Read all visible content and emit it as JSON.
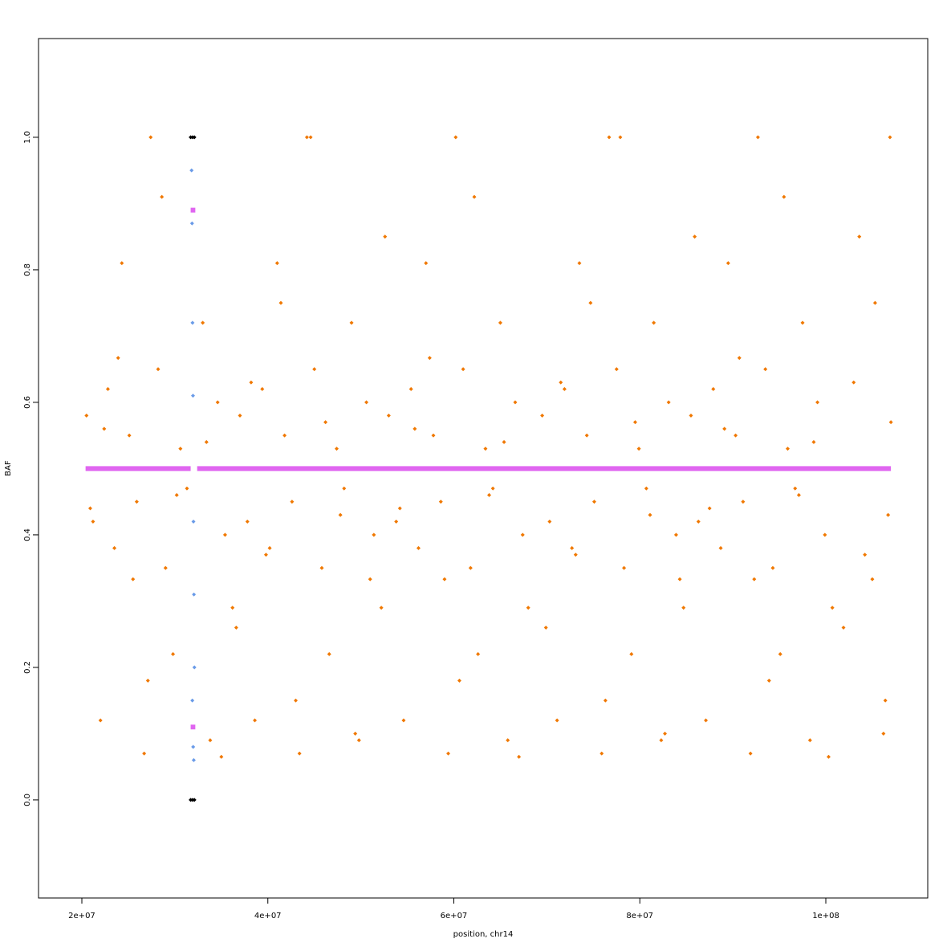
{
  "chart_data": {
    "type": "scatter",
    "xlabel": "position, chr14",
    "ylabel": "BAF",
    "xlim": [
      15340000,
      110960000
    ],
    "ylim": [
      -0.148,
      1.149
    ],
    "xticks": [
      {
        "value": 20000000,
        "label": "2e+07"
      },
      {
        "value": 40000000,
        "label": "4e+07"
      },
      {
        "value": 60000000,
        "label": "6e+07"
      },
      {
        "value": 80000000,
        "label": "8e+07"
      },
      {
        "value": 100000000,
        "label": "1e+08"
      }
    ],
    "yticks": [
      {
        "value": 0,
        "label": "0.0"
      },
      0.2,
      0.4,
      0.6,
      0.8,
      {
        "value": 1,
        "label": "1.0"
      }
    ],
    "series": [
      {
        "color": "#f07800",
        "mode": "points",
        "x": [
          20500000,
          21200000,
          22000000,
          22800000,
          23500000,
          24300000,
          25100000,
          25900000,
          26700000,
          27400000,
          28200000,
          29000000,
          29800000,
          30600000,
          31300000,
          33000000,
          33800000,
          34600000,
          35400000,
          36200000,
          37000000,
          37800000,
          38600000,
          39400000,
          40200000,
          41000000,
          41800000,
          42600000,
          43400000,
          44200000,
          45000000,
          45800000,
          46600000,
          47400000,
          48200000,
          49000000,
          49800000,
          50600000,
          51400000,
          52200000,
          53000000,
          53800000,
          54600000,
          55400000,
          56200000,
          57000000,
          57800000,
          58600000,
          59400000,
          60200000,
          61000000,
          61800000,
          62600000,
          63400000,
          64200000,
          65000000,
          65800000,
          66600000,
          67400000,
          68000000,
          69500000,
          70300000,
          71100000,
          71900000,
          72700000,
          73500000,
          74300000,
          75100000,
          75900000,
          76700000,
          77500000,
          78300000,
          79100000,
          79900000,
          80700000,
          81500000,
          82300000,
          83100000,
          83900000,
          84700000,
          85500000,
          86300000,
          87100000,
          87900000,
          88700000,
          89500000,
          90300000,
          91100000,
          91900000,
          92700000,
          93500000,
          94300000,
          95100000,
          95900000,
          96700000,
          97500000,
          98300000,
          99100000,
          99900000,
          100700000,
          20900000,
          22400000,
          23900000,
          25500000,
          27100000,
          28600000,
          30200000,
          33400000,
          35000000,
          36600000,
          38200000,
          39800000,
          41400000,
          43000000,
          44600000,
          46200000,
          47800000,
          49400000,
          51000000,
          52600000,
          54200000,
          55800000,
          57400000,
          59000000,
          60600000,
          62200000,
          63800000,
          65400000,
          67000000,
          69900000,
          71500000,
          73100000,
          74700000,
          76300000,
          77900000,
          79500000,
          81100000,
          82700000,
          84300000,
          85900000,
          87500000,
          89100000,
          90700000,
          92300000,
          93900000,
          95500000,
          97100000,
          98700000,
          100300000,
          101900000,
          103000000,
          104200000,
          105300000,
          106400000,
          106900000,
          107000000,
          106700000,
          106200000,
          105000000,
          103600000
        ],
        "y": [
          0.58,
          0.42,
          0.12,
          0.62,
          0.38,
          0.81,
          0.55,
          0.45,
          0.07,
          1,
          0.65,
          0.35,
          0.22,
          0.53,
          0.47,
          0.72,
          0.09,
          0.6,
          0.4,
          0.29,
          0.58,
          0.42,
          0.12,
          0.62,
          0.38,
          0.81,
          0.55,
          0.45,
          0.07,
          1,
          0.65,
          0.35,
          0.22,
          0.53,
          0.47,
          0.72,
          0.09,
          0.6,
          0.4,
          0.29,
          0.58,
          0.42,
          0.12,
          0.62,
          0.38,
          0.81,
          0.55,
          0.45,
          0.07,
          1,
          0.65,
          0.35,
          0.22,
          0.53,
          0.47,
          0.72,
          0.09,
          0.6,
          0.4,
          0.29,
          0.58,
          0.42,
          0.12,
          0.62,
          0.38,
          0.81,
          0.55,
          0.45,
          0.07,
          1,
          0.65,
          0.35,
          0.22,
          0.53,
          0.47,
          0.72,
          0.09,
          0.6,
          0.4,
          0.29,
          0.58,
          0.42,
          0.12,
          0.62,
          0.38,
          0.81,
          0.55,
          0.45,
          0.07,
          1,
          0.65,
          0.35,
          0.22,
          0.53,
          0.47,
          0.72,
          0.09,
          0.6,
          0.4,
          0.29,
          0.44,
          0.56,
          0.667,
          0.333,
          0.18,
          0.91,
          0.46,
          0.54,
          0.065,
          0.26,
          0.63,
          0.37,
          0.75,
          0.15,
          1,
          0.57,
          0.43,
          0.1,
          0.333,
          0.85,
          0.44,
          0.56,
          0.667,
          0.333,
          0.18,
          0.91,
          0.46,
          0.54,
          0.065,
          0.26,
          0.63,
          0.37,
          0.75,
          0.15,
          1,
          0.57,
          0.43,
          0.1,
          0.333,
          0.85,
          0.44,
          0.56,
          0.667,
          0.333,
          0.18,
          0.91,
          0.46,
          0.54,
          0.065,
          0.26,
          0.63,
          0.37,
          0.75,
          0.15,
          1,
          0.57,
          0.43,
          0.1,
          0.333,
          0.85
        ]
      },
      {
        "color": "#6a9be8",
        "mode": "points",
        "x": [
          31800000,
          31850000,
          31900000,
          31950000,
          32000000,
          32050000,
          32100000,
          31880000,
          31970000,
          32030000
        ],
        "y": [
          0.95,
          0.87,
          0.72,
          0.61,
          0.42,
          0.31,
          0.2,
          0.15,
          0.08,
          0.06
        ]
      },
      {
        "color": "#000000",
        "mode": "points",
        "x": [
          31700000,
          31900000,
          32100000,
          31700000,
          31900000,
          32100000
        ],
        "y": [
          1,
          1,
          1,
          0,
          0,
          0
        ]
      },
      {
        "color": "#e066f0",
        "mode": "line",
        "x": [
          20400000,
          31700000,
          null,
          32400000,
          107000000,
          null,
          31700000,
          32200000,
          null,
          31700000,
          32200000
        ],
        "y": [
          0.5,
          0.5,
          null,
          0.5,
          0.5,
          null,
          0.89,
          0.89,
          null,
          0.11,
          0.11
        ]
      }
    ]
  }
}
